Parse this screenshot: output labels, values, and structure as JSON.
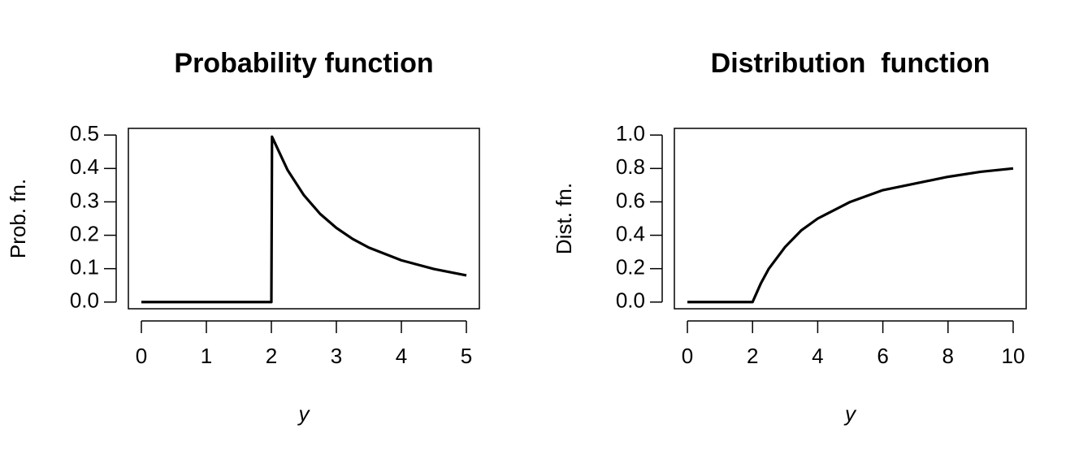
{
  "chart_data": [
    {
      "type": "line",
      "title": "Probability function",
      "xlabel": "y",
      "ylabel": "Prob. fn.",
      "x": [
        0,
        2,
        2.01,
        2.25,
        2.5,
        2.75,
        3,
        3.25,
        3.5,
        4,
        4.5,
        5
      ],
      "values": [
        0,
        0,
        0.495,
        0.395,
        0.32,
        0.264,
        0.222,
        0.189,
        0.163,
        0.125,
        0.099,
        0.08
      ],
      "color": "#000000",
      "xlim": [
        -0.2,
        5.2
      ],
      "xticks": [
        0,
        1,
        2,
        3,
        4,
        5
      ],
      "ylim": [
        -0.02,
        0.52
      ],
      "yticks": [
        {
          "value": 0,
          "label": "0.0"
        },
        0.1,
        0.2,
        0.3,
        0.4,
        0.5
      ]
    },
    {
      "type": "line",
      "title": "Distribution  function",
      "xlabel": "y",
      "ylabel": "Dist. fn.",
      "x": [
        0,
        2,
        2.25,
        2.5,
        3,
        3.5,
        4,
        5,
        6,
        7,
        8,
        9,
        10
      ],
      "values": [
        0,
        0,
        0.11,
        0.2,
        0.33,
        0.43,
        0.5,
        0.6,
        0.67,
        0.71,
        0.75,
        0.78,
        0.8
      ],
      "color": "#000000",
      "xlim": [
        -0.4,
        10.4
      ],
      "xticks": [
        0,
        2,
        4,
        6,
        8,
        10
      ],
      "ylim": [
        -0.04,
        1.04
      ],
      "yticks": [
        {
          "value": 0,
          "label": "0.0"
        },
        0.2,
        0.4,
        0.6,
        0.8,
        {
          "value": 1,
          "label": "1.0"
        }
      ]
    }
  ]
}
